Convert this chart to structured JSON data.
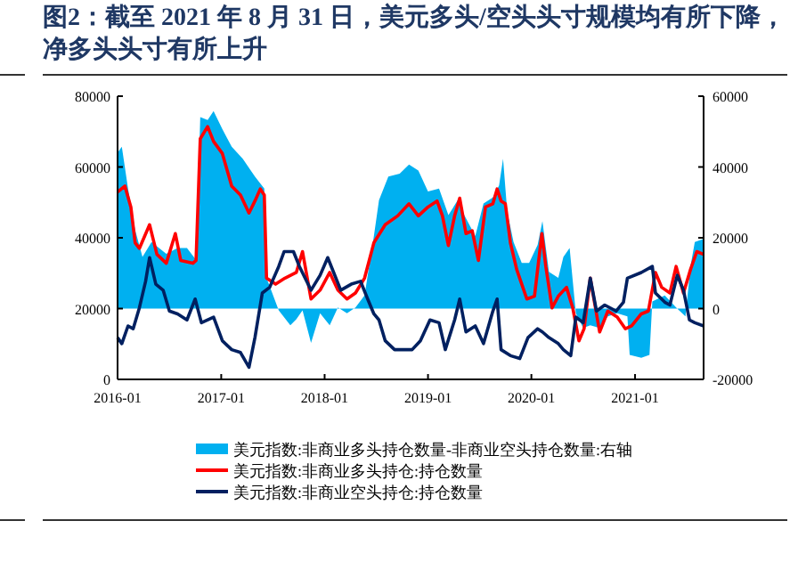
{
  "chart_data": {
    "type": "line",
    "title": "图2：截至 2021 年 8 月 31 日，美元多头/空头头寸规模均有所下降，净多头头寸有所上升",
    "xlim": [
      "2016-01-01",
      "2021-08-31"
    ],
    "xticks": [
      "2016-01",
      "2017-01",
      "2018-01",
      "2019-01",
      "2020-01",
      "2021-01"
    ],
    "ylim": [
      0,
      80000
    ],
    "yticks": [
      0,
      20000,
      40000,
      60000,
      80000
    ],
    "y2lim": [
      -20000,
      60000
    ],
    "y2ticks": [
      -20000,
      0,
      20000,
      40000,
      60000
    ],
    "legend": "bottom",
    "series": [
      {
        "name": "美元指数:非商业多头持仓数量-非商业空头持仓数量:右轴",
        "type": "area",
        "axis": "y2",
        "color": "#00b0f0",
        "x": [
          "2016-01-01",
          "2016-01-16",
          "2016-02-07",
          "2016-03-03",
          "2016-03-29",
          "2016-04-30",
          "2016-06-21",
          "2016-07-31",
          "2016-09-02",
          "2016-10-04",
          "2016-10-19",
          "2016-11-14",
          "2016-12-05",
          "2017-01-05",
          "2017-02-07",
          "2017-03-18",
          "2017-04-30",
          "2017-06-02",
          "2017-06-10",
          "2017-07-23",
          "2017-09-02",
          "2017-09-23",
          "2017-10-15",
          "2017-11-14",
          "2017-12-16",
          "2018-01-19",
          "2018-02-17",
          "2018-03-21",
          "2018-04-20",
          "2018-05-22",
          "2018-06-24",
          "2018-07-12",
          "2018-08-14",
          "2018-09-23",
          "2018-10-26",
          "2018-11-28",
          "2019-01-01",
          "2019-02-09",
          "2019-03-14",
          "2019-04-16",
          "2019-05-04",
          "2019-06-17",
          "2019-07-16",
          "2019-08-18",
          "2019-09-09",
          "2019-09-23",
          "2019-10-08",
          "2019-10-30",
          "2019-11-28",
          "2019-12-24",
          "2020-01-23",
          "2020-02-09",
          "2020-03-03",
          "2020-04-05",
          "2020-04-23",
          "2020-05-15",
          "2020-06-06",
          "2020-07-02",
          "2020-07-27",
          "2020-08-29",
          "2020-09-27",
          "2020-10-30",
          "2020-12-05",
          "2020-12-13",
          "2021-01-23",
          "2021-02-21",
          "2021-03-03",
          "2021-04-16",
          "2021-05-26",
          "2021-06-28",
          "2021-07-16",
          "2021-07-31",
          "2021-08-31"
        ],
        "values": [
          44000,
          45700,
          33900,
          22200,
          14600,
          18800,
          15500,
          17100,
          17100,
          13800,
          54100,
          53300,
          55800,
          50700,
          45700,
          42300,
          37300,
          33900,
          8700,
          -500,
          -4700,
          -3000,
          -500,
          -9700,
          -1300,
          -4700,
          300,
          -1300,
          300,
          3700,
          20500,
          30600,
          37300,
          38100,
          40700,
          39000,
          33100,
          33900,
          26400,
          30600,
          27200,
          20500,
          29700,
          31400,
          34800,
          42300,
          27200,
          18800,
          12900,
          12900,
          18000,
          24700,
          10400,
          8700,
          14600,
          17100,
          -1300,
          -5500,
          -4700,
          -5500,
          -2200,
          -1300,
          -2200,
          -13100,
          -13900,
          -13100,
          2000,
          3700,
          300,
          -2200,
          12100,
          18800,
          19700
        ]
      },
      {
        "name": "美元指数:非商业多头持仓:持仓数量",
        "color": "#ff0000",
        "x": [
          "2016-01-01",
          "2016-01-27",
          "2016-02-17",
          "2016-03-03",
          "2016-03-18",
          "2016-04-23",
          "2016-05-19",
          "2016-06-21",
          "2016-07-23",
          "2016-08-11",
          "2016-09-23",
          "2016-10-04",
          "2016-10-19",
          "2016-11-14",
          "2016-12-05",
          "2017-01-05",
          "2017-02-07",
          "2017-03-10",
          "2017-04-09",
          "2017-04-30",
          "2017-05-19",
          "2017-06-02",
          "2017-06-10",
          "2017-07-12",
          "2017-08-14",
          "2017-09-23",
          "2017-10-15",
          "2017-11-14",
          "2017-12-16",
          "2018-01-19",
          "2018-02-17",
          "2018-03-21",
          "2018-04-20",
          "2018-05-22",
          "2018-06-24",
          "2018-08-03",
          "2018-09-16",
          "2018-10-26",
          "2018-11-28",
          "2019-01-01",
          "2019-02-02",
          "2019-02-21",
          "2019-03-14",
          "2019-04-05",
          "2019-04-23",
          "2019-05-15",
          "2019-06-06",
          "2019-06-28",
          "2019-07-23",
          "2019-08-18",
          "2019-09-02",
          "2019-09-16",
          "2019-10-01",
          "2019-10-19",
          "2019-11-10",
          "2019-11-28",
          "2019-12-16",
          "2020-01-12",
          "2020-02-07",
          "2020-02-21",
          "2020-03-14",
          "2020-04-05",
          "2020-05-04",
          "2020-05-26",
          "2020-06-17",
          "2020-07-05",
          "2020-07-27",
          "2020-08-29",
          "2020-09-27",
          "2020-10-30",
          "2020-11-28",
          "2020-12-20",
          "2021-01-23",
          "2021-02-17",
          "2021-03-14",
          "2021-04-05",
          "2021-05-04",
          "2021-05-26",
          "2021-06-21",
          "2021-07-16",
          "2021-08-07",
          "2021-08-31"
        ],
        "values": [
          52900,
          54600,
          48700,
          38600,
          37000,
          43700,
          35300,
          32800,
          41200,
          33600,
          32800,
          33600,
          68000,
          71400,
          67200,
          63800,
          54600,
          52100,
          47000,
          50400,
          53800,
          52100,
          28600,
          26900,
          28600,
          30200,
          36100,
          22700,
          25200,
          30200,
          25200,
          22700,
          24400,
          28600,
          38600,
          43700,
          46200,
          49600,
          46200,
          48700,
          50400,
          46200,
          37800,
          46200,
          51200,
          41200,
          42000,
          33600,
          48700,
          49600,
          53800,
          50400,
          49600,
          38600,
          31100,
          26900,
          22700,
          23500,
          41200,
          31900,
          20200,
          23500,
          26000,
          20200,
          10900,
          14300,
          28600,
          13400,
          19300,
          17600,
          14300,
          15100,
          18500,
          19300,
          30200,
          26000,
          24400,
          31900,
          24400,
          31100,
          36100,
          35300
        ]
      },
      {
        "name": "美元指数:非商业空头持仓:持仓数量",
        "color": "#002060",
        "x": [
          "2016-01-01",
          "2016-01-16",
          "2016-02-07",
          "2016-02-25",
          "2016-03-18",
          "2016-04-09",
          "2016-04-23",
          "2016-05-15",
          "2016-06-10",
          "2016-07-02",
          "2016-07-31",
          "2016-09-02",
          "2016-10-01",
          "2016-10-23",
          "2016-12-05",
          "2017-01-05",
          "2017-02-07",
          "2017-03-10",
          "2017-04-09",
          "2017-04-30",
          "2017-05-26",
          "2017-06-21",
          "2017-07-23",
          "2017-08-11",
          "2017-09-13",
          "2017-10-04",
          "2017-11-14",
          "2017-12-16",
          "2018-01-12",
          "2018-02-02",
          "2018-02-27",
          "2018-04-05",
          "2018-05-08",
          "2018-06-02",
          "2018-06-24",
          "2018-07-12",
          "2018-08-03",
          "2018-09-05",
          "2018-10-04",
          "2018-11-06",
          "2018-12-05",
          "2019-01-08",
          "2019-02-09",
          "2019-03-03",
          "2019-04-05",
          "2019-04-23",
          "2019-05-15",
          "2019-06-17",
          "2019-07-16",
          "2019-08-18",
          "2019-09-02",
          "2019-09-16",
          "2019-10-19",
          "2019-11-21",
          "2019-12-20",
          "2020-01-23",
          "2020-02-09",
          "2020-03-03",
          "2020-04-05",
          "2020-04-23",
          "2020-05-19",
          "2020-06-06",
          "2020-07-02",
          "2020-07-27",
          "2020-08-18",
          "2020-09-16",
          "2020-10-26",
          "2020-11-21",
          "2020-12-05",
          "2021-01-23",
          "2021-03-03",
          "2021-03-14",
          "2021-04-16",
          "2021-05-04",
          "2021-05-30",
          "2021-06-21",
          "2021-07-12",
          "2021-07-31",
          "2021-08-31"
        ],
        "values": [
          11800,
          10100,
          15100,
          14300,
          20200,
          27700,
          34400,
          26900,
          25200,
          19300,
          18500,
          16800,
          22700,
          16000,
          17600,
          10900,
          8400,
          7600,
          3400,
          11800,
          24400,
          26000,
          31900,
          36100,
          36100,
          31900,
          25200,
          29400,
          34400,
          30200,
          25200,
          26900,
          27700,
          22700,
          18500,
          16800,
          10900,
          8400,
          8400,
          8400,
          10900,
          16800,
          16000,
          8400,
          16800,
          22700,
          13400,
          15100,
          10100,
          19300,
          22700,
          8400,
          6700,
          5900,
          11800,
          14300,
          13400,
          11800,
          10100,
          8400,
          6700,
          17600,
          16000,
          28600,
          19300,
          21000,
          19300,
          21800,
          28600,
          30200,
          31900,
          24400,
          21800,
          21000,
          29400,
          25200,
          16800,
          16000,
          15100
        ]
      }
    ]
  }
}
